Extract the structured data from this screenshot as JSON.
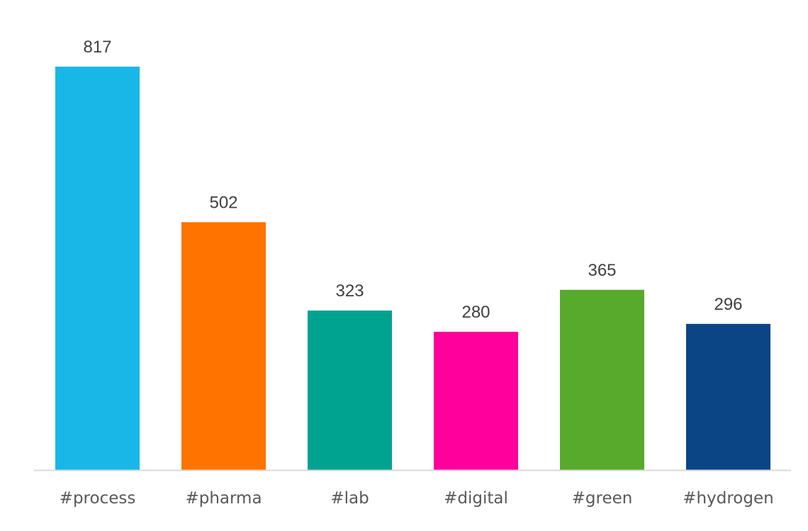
{
  "chart_data": {
    "type": "bar",
    "categories": [
      "#process",
      "#pharma",
      "#lab",
      "#digital",
      "#green",
      "#hydrogen"
    ],
    "values": [
      817,
      502,
      323,
      280,
      365,
      296
    ],
    "data_labels": [
      "817",
      "502",
      "323",
      "280",
      "365",
      "296"
    ],
    "colors": [
      "#18B7E8",
      "#FF7300",
      "#00A390",
      "#FF009C",
      "#58AA2C",
      "#0B4585"
    ],
    "axis_color": "#D9D9D9",
    "title": "",
    "xlabel": "",
    "ylabel": "",
    "ylim": [
      0,
      817
    ],
    "grid": false,
    "legend": "none"
  }
}
